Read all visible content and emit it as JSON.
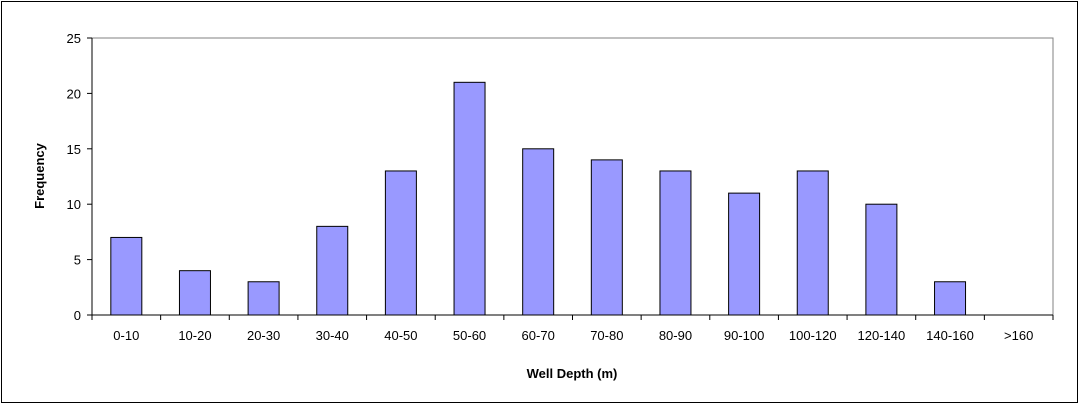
{
  "chart_data": {
    "type": "bar",
    "title": "",
    "xlabel": "Well Depth (m)",
    "ylabel": "Frequency",
    "categories": [
      "0-10",
      "10-20",
      "20-30",
      "30-40",
      "40-50",
      "50-60",
      "60-70",
      "70-80",
      "80-90",
      "90-100",
      "100-120",
      "120-140",
      "140-160",
      ">160"
    ],
    "values": [
      7,
      4,
      3,
      8,
      13,
      21,
      15,
      14,
      13,
      11,
      13,
      10,
      3,
      0
    ],
    "ylim": [
      0,
      25
    ],
    "yticks": [
      "0",
      "5",
      "10",
      "15",
      "20",
      "25"
    ],
    "grid": false,
    "legend": "none",
    "colors": {
      "bar_fill": "#9999FF",
      "bar_stroke": "#000000",
      "axis": "#000000",
      "plot_border": "#808080"
    }
  }
}
